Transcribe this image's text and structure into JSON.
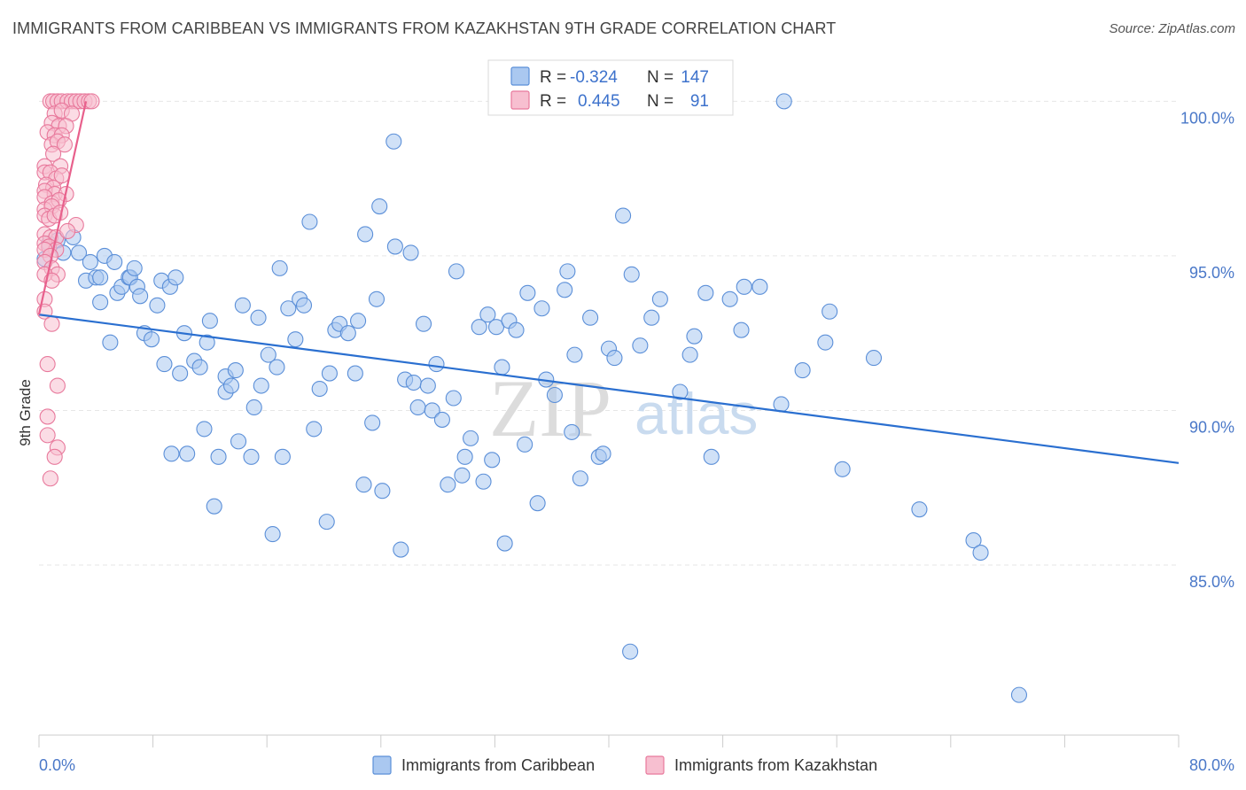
{
  "title": "IMMIGRANTS FROM CARIBBEAN VS IMMIGRANTS FROM KAZAKHSTAN 9TH GRADE CORRELATION CHART",
  "source": "Source: ZipAtlas.com",
  "watermark": {
    "zip": "ZIP",
    "atlas": "atlas"
  },
  "colors": {
    "caribbean_fill": "#aac8f0",
    "caribbean_stroke": "#5b8fd8",
    "caribbean_line": "#2a6fd0",
    "kazakhstan_fill": "#f7bfd0",
    "kazakhstan_stroke": "#e8799c",
    "kazakhstan_line": "#e8608c",
    "tick_label": "#4a78c8",
    "grid": "#e6e6e6"
  },
  "legend": {
    "rows": [
      {
        "r_label": "R =",
        "r_value": "-0.324",
        "n_label": "N =",
        "n_value": "147"
      },
      {
        "r_label": "R =",
        "r_value": "0.445",
        "n_label": "N =",
        "n_value": "91"
      }
    ],
    "placement": "top-center"
  },
  "chart_data": {
    "type": "scatter",
    "xlabel": "",
    "ylabel": "9th Grade",
    "xlim": [
      0,
      80
    ],
    "ylim": [
      79.5,
      101.5
    ],
    "x_tick_labels": [
      "0.0%",
      "80.0%"
    ],
    "y_ticks": [
      85,
      90,
      95,
      100
    ],
    "y_tick_labels": [
      "85.0%",
      "90.0%",
      "95.0%",
      "100.0%"
    ],
    "grid": true,
    "series": [
      {
        "name": "Immigrants from Caribbean",
        "R": -0.324,
        "N": 147,
        "trend": [
          [
            0,
            93.1
          ],
          [
            80,
            88.3
          ]
        ],
        "points": [
          [
            0.4,
            94.9
          ],
          [
            0.7,
            95.4
          ],
          [
            1.3,
            95.5
          ],
          [
            1.7,
            95.1
          ],
          [
            2.4,
            95.6
          ],
          [
            2.8,
            95.1
          ],
          [
            3.3,
            94.2
          ],
          [
            3.6,
            94.8
          ],
          [
            4.0,
            94.3
          ],
          [
            4.3,
            94.3
          ],
          [
            4.3,
            93.5
          ],
          [
            4.6,
            95.0
          ],
          [
            5.0,
            92.2
          ],
          [
            5.3,
            94.8
          ],
          [
            5.5,
            93.8
          ],
          [
            5.8,
            94.0
          ],
          [
            6.3,
            94.3
          ],
          [
            6.4,
            94.3
          ],
          [
            6.7,
            94.6
          ],
          [
            6.9,
            94.0
          ],
          [
            7.1,
            93.7
          ],
          [
            7.4,
            92.5
          ],
          [
            7.9,
            92.3
          ],
          [
            8.3,
            93.4
          ],
          [
            8.6,
            94.2
          ],
          [
            8.8,
            91.5
          ],
          [
            9.2,
            94.0
          ],
          [
            9.3,
            88.6
          ],
          [
            9.6,
            94.3
          ],
          [
            9.9,
            91.2
          ],
          [
            10.2,
            92.5
          ],
          [
            10.4,
            88.6
          ],
          [
            10.9,
            91.6
          ],
          [
            11.3,
            91.4
          ],
          [
            11.6,
            89.4
          ],
          [
            11.8,
            92.2
          ],
          [
            12.0,
            92.9
          ],
          [
            12.3,
            86.9
          ],
          [
            12.6,
            88.5
          ],
          [
            13.1,
            91.1
          ],
          [
            13.1,
            90.6
          ],
          [
            13.5,
            90.8
          ],
          [
            13.8,
            91.3
          ],
          [
            14.0,
            89.0
          ],
          [
            14.3,
            93.4
          ],
          [
            14.9,
            88.5
          ],
          [
            15.1,
            90.1
          ],
          [
            15.4,
            93.0
          ],
          [
            15.6,
            90.8
          ],
          [
            16.1,
            91.8
          ],
          [
            16.4,
            86.0
          ],
          [
            16.7,
            91.4
          ],
          [
            16.9,
            94.6
          ],
          [
            17.1,
            88.5
          ],
          [
            17.5,
            93.3
          ],
          [
            18.0,
            92.3
          ],
          [
            18.3,
            93.6
          ],
          [
            18.6,
            93.4
          ],
          [
            19.0,
            96.1
          ],
          [
            19.3,
            89.4
          ],
          [
            19.7,
            90.7
          ],
          [
            20.2,
            86.4
          ],
          [
            20.4,
            91.2
          ],
          [
            20.8,
            92.6
          ],
          [
            21.1,
            92.8
          ],
          [
            21.7,
            92.5
          ],
          [
            22.2,
            91.2
          ],
          [
            22.4,
            92.9
          ],
          [
            22.8,
            87.6
          ],
          [
            22.9,
            95.7
          ],
          [
            23.4,
            89.6
          ],
          [
            23.7,
            93.6
          ],
          [
            23.9,
            96.6
          ],
          [
            24.1,
            87.4
          ],
          [
            24.9,
            98.7
          ],
          [
            25.0,
            95.3
          ],
          [
            25.4,
            85.5
          ],
          [
            25.7,
            91.0
          ],
          [
            26.1,
            95.1
          ],
          [
            26.3,
            90.9
          ],
          [
            26.6,
            90.1
          ],
          [
            27.0,
            92.8
          ],
          [
            27.3,
            90.8
          ],
          [
            27.6,
            90.0
          ],
          [
            27.9,
            91.5
          ],
          [
            28.3,
            89.7
          ],
          [
            28.7,
            87.6
          ],
          [
            29.1,
            90.4
          ],
          [
            29.3,
            94.5
          ],
          [
            29.7,
            87.9
          ],
          [
            29.9,
            88.5
          ],
          [
            30.3,
            89.1
          ],
          [
            30.9,
            92.7
          ],
          [
            31.2,
            87.7
          ],
          [
            31.5,
            93.1
          ],
          [
            31.8,
            88.4
          ],
          [
            32.1,
            92.7
          ],
          [
            32.5,
            91.4
          ],
          [
            32.7,
            85.7
          ],
          [
            33.0,
            92.9
          ],
          [
            33.5,
            92.6
          ],
          [
            34.1,
            88.9
          ],
          [
            34.3,
            93.8
          ],
          [
            35.0,
            87.0
          ],
          [
            35.3,
            93.3
          ],
          [
            35.6,
            91.0
          ],
          [
            36.2,
            90.5
          ],
          [
            36.9,
            93.9
          ],
          [
            37.1,
            94.5
          ],
          [
            37.4,
            89.3
          ],
          [
            37.6,
            91.8
          ],
          [
            38.0,
            87.8
          ],
          [
            38.7,
            93.0
          ],
          [
            39.3,
            88.5
          ],
          [
            39.6,
            88.6
          ],
          [
            40.0,
            92.0
          ],
          [
            40.4,
            91.7
          ],
          [
            41.0,
            96.3
          ],
          [
            41.5,
            82.2
          ],
          [
            41.6,
            94.4
          ],
          [
            42.2,
            92.1
          ],
          [
            43.0,
            93.0
          ],
          [
            43.6,
            93.6
          ],
          [
            45.0,
            90.6
          ],
          [
            45.7,
            91.8
          ],
          [
            46.0,
            92.4
          ],
          [
            46.8,
            93.8
          ],
          [
            47.2,
            88.5
          ],
          [
            48.5,
            93.6
          ],
          [
            49.3,
            92.6
          ],
          [
            49.5,
            94.0
          ],
          [
            50.6,
            94.0
          ],
          [
            52.1,
            90.2
          ],
          [
            52.3,
            100.0
          ],
          [
            53.6,
            91.3
          ],
          [
            55.2,
            92.2
          ],
          [
            55.5,
            93.2
          ],
          [
            56.4,
            88.1
          ],
          [
            58.6,
            91.7
          ],
          [
            61.8,
            86.8
          ],
          [
            65.6,
            85.8
          ],
          [
            66.1,
            85.4
          ],
          [
            68.8,
            80.8
          ]
        ]
      },
      {
        "name": "Immigrants from Kazakhstan",
        "R": 0.445,
        "N": 91,
        "trend": [
          [
            0,
            93.1
          ],
          [
            3.3,
            100.0
          ]
        ],
        "points": [
          [
            0.8,
            100.0
          ],
          [
            1.0,
            100.0
          ],
          [
            1.3,
            100.0
          ],
          [
            1.6,
            100.0
          ],
          [
            2.0,
            100.0
          ],
          [
            2.3,
            100.0
          ],
          [
            2.6,
            100.0
          ],
          [
            2.9,
            100.0
          ],
          [
            3.2,
            100.0
          ],
          [
            3.5,
            100.0
          ],
          [
            3.7,
            100.0
          ],
          [
            1.1,
            99.6
          ],
          [
            1.6,
            99.7
          ],
          [
            2.3,
            99.6
          ],
          [
            0.9,
            99.3
          ],
          [
            1.4,
            99.2
          ],
          [
            1.9,
            99.2
          ],
          [
            0.6,
            99.0
          ],
          [
            1.1,
            98.9
          ],
          [
            1.6,
            98.9
          ],
          [
            0.9,
            98.6
          ],
          [
            1.3,
            98.7
          ],
          [
            1.8,
            98.6
          ],
          [
            1.0,
            98.3
          ],
          [
            0.4,
            97.9
          ],
          [
            1.5,
            97.9
          ],
          [
            0.4,
            97.7
          ],
          [
            0.8,
            97.7
          ],
          [
            1.2,
            97.5
          ],
          [
            1.6,
            97.6
          ],
          [
            0.5,
            97.3
          ],
          [
            1.0,
            97.2
          ],
          [
            0.4,
            97.1
          ],
          [
            1.1,
            97.0
          ],
          [
            1.9,
            97.0
          ],
          [
            0.4,
            96.9
          ],
          [
            0.9,
            96.7
          ],
          [
            1.4,
            96.8
          ],
          [
            0.4,
            96.5
          ],
          [
            0.9,
            96.6
          ],
          [
            0.4,
            96.3
          ],
          [
            0.7,
            96.2
          ],
          [
            1.1,
            96.3
          ],
          [
            1.5,
            96.4
          ],
          [
            2.6,
            96.0
          ],
          [
            0.4,
            95.7
          ],
          [
            0.8,
            95.6
          ],
          [
            1.2,
            95.6
          ],
          [
            2.0,
            95.8
          ],
          [
            0.4,
            95.4
          ],
          [
            0.7,
            95.3
          ],
          [
            1.2,
            95.2
          ],
          [
            0.4,
            95.2
          ],
          [
            0.8,
            95.0
          ],
          [
            0.4,
            94.8
          ],
          [
            0.9,
            94.6
          ],
          [
            1.3,
            94.4
          ],
          [
            0.4,
            94.4
          ],
          [
            0.9,
            94.2
          ],
          [
            0.4,
            93.6
          ],
          [
            0.4,
            93.2
          ],
          [
            0.9,
            92.8
          ],
          [
            0.6,
            91.5
          ],
          [
            1.3,
            90.8
          ],
          [
            0.6,
            89.8
          ],
          [
            0.6,
            89.2
          ],
          [
            1.3,
            88.8
          ],
          [
            1.1,
            88.5
          ],
          [
            0.8,
            87.8
          ]
        ]
      }
    ]
  }
}
